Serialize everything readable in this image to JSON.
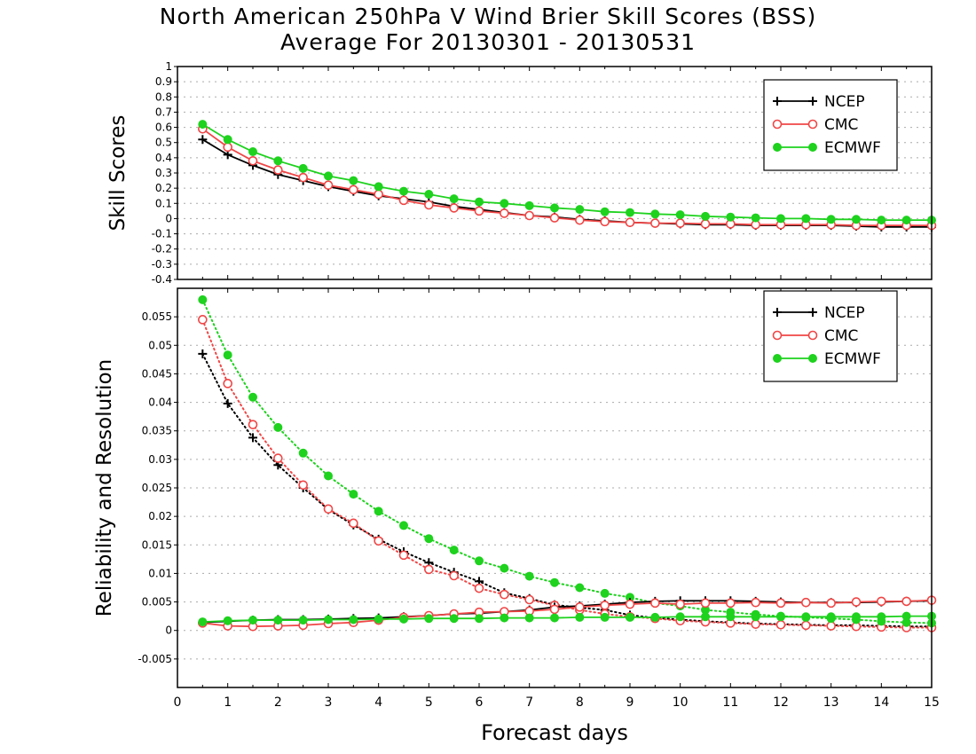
{
  "title": "North American 250hPa V Wind Brier Skill Scores (BSS)",
  "subtitle": "Average For 20130301 - 20130531",
  "colors": {
    "NCEP": "#000000",
    "CMC": "#f04646",
    "ECMWF": "#1ed21e",
    "grid": "#aaaaaa"
  },
  "chart_data": [
    {
      "type": "line",
      "title": "",
      "xlabel": "Forecast days",
      "ylabel": "Skill Scores",
      "xlim": [
        0,
        15
      ],
      "ylim": [
        -0.4,
        1
      ],
      "x_ticks": [
        0,
        1,
        2,
        3,
        4,
        5,
        6,
        7,
        8,
        9,
        10,
        11,
        12,
        13,
        14,
        15
      ],
      "y_ticks": [
        -0.4,
        -0.3,
        -0.2,
        -0.1,
        0,
        0.1,
        0.2,
        0.3,
        0.4,
        0.5,
        0.6,
        0.7,
        0.8,
        0.9,
        1
      ],
      "y_tick_labels": [
        "-0.4",
        "-0.3",
        "-0.2",
        "-0.1",
        "0",
        "0.1",
        "0.2",
        "0.3",
        "0.4",
        "0.5",
        "0.6",
        "0.7",
        "0.8",
        "0.9",
        "1"
      ],
      "grid": true,
      "legend": "top-right",
      "x": [
        0.5,
        1,
        1.5,
        2,
        2.5,
        3,
        3.5,
        4,
        4.5,
        5,
        5.5,
        6,
        6.5,
        7,
        7.5,
        8,
        8.5,
        9,
        9.5,
        10,
        10.5,
        11,
        11.5,
        12,
        12.5,
        13,
        13.5,
        14,
        14.5,
        15
      ],
      "series": [
        {
          "name": "NCEP",
          "marker": "plus",
          "line": "solid",
          "values": [
            0.52,
            0.42,
            0.35,
            0.29,
            0.25,
            0.21,
            0.18,
            0.15,
            0.13,
            0.11,
            0.08,
            0.06,
            0.04,
            0.02,
            0.01,
            -0.005,
            -0.015,
            -0.025,
            -0.03,
            -0.035,
            -0.04,
            -0.04,
            -0.045,
            -0.045,
            -0.045,
            -0.045,
            -0.05,
            -0.055,
            -0.055,
            -0.055
          ]
        },
        {
          "name": "CMC",
          "marker": "open-circle",
          "line": "solid",
          "values": [
            0.59,
            0.47,
            0.38,
            0.32,
            0.27,
            0.22,
            0.19,
            0.16,
            0.12,
            0.09,
            0.07,
            0.05,
            0.035,
            0.02,
            0.005,
            -0.01,
            -0.02,
            -0.025,
            -0.03,
            -0.03,
            -0.035,
            -0.035,
            -0.04,
            -0.04,
            -0.04,
            -0.04,
            -0.045,
            -0.045,
            -0.045,
            -0.045
          ]
        },
        {
          "name": "ECMWF",
          "marker": "filled-circle",
          "line": "solid",
          "values": [
            0.62,
            0.52,
            0.44,
            0.38,
            0.33,
            0.28,
            0.25,
            0.21,
            0.18,
            0.16,
            0.13,
            0.11,
            0.1,
            0.085,
            0.07,
            0.06,
            0.045,
            0.04,
            0.03,
            0.025,
            0.015,
            0.01,
            0.005,
            0.0,
            0.0,
            -0.005,
            -0.005,
            -0.01,
            -0.01,
            -0.01
          ]
        }
      ]
    },
    {
      "type": "line",
      "title": "",
      "xlabel": "Forecast days",
      "ylabel": "Reliability and Resolution",
      "xlim": [
        0,
        15
      ],
      "ylim": [
        -0.01,
        0.06
      ],
      "x_ticks": [
        0,
        1,
        2,
        3,
        4,
        5,
        6,
        7,
        8,
        9,
        10,
        11,
        12,
        13,
        14,
        15
      ],
      "y_ticks": [
        -0.005,
        0,
        0.005,
        0.01,
        0.015,
        0.02,
        0.025,
        0.03,
        0.035,
        0.04,
        0.045,
        0.05,
        0.055
      ],
      "y_tick_labels": [
        "-0.005",
        "0",
        "0.005",
        "0.01",
        "0.015",
        "0.02",
        "0.025",
        "0.03",
        "0.035",
        "0.04",
        "0.045",
        "0.05",
        "0.055"
      ],
      "grid": true,
      "legend": "top-right",
      "x": [
        0.5,
        1,
        1.5,
        2,
        2.5,
        3,
        3.5,
        4,
        4.5,
        5,
        5.5,
        6,
        6.5,
        7,
        7.5,
        8,
        8.5,
        9,
        9.5,
        10,
        10.5,
        11,
        11.5,
        12,
        12.5,
        13,
        13.5,
        14,
        14.5,
        15
      ],
      "series": [
        {
          "name": "NCEP",
          "marker": "plus",
          "line": "dotted",
          "quantity": "resolution",
          "values": [
            0.0485,
            0.0398,
            0.0338,
            0.029,
            0.025,
            0.0212,
            0.0185,
            0.016,
            0.0138,
            0.0119,
            0.0102,
            0.0086,
            0.0066,
            0.0056,
            0.0045,
            0.004,
            0.0036,
            0.0027,
            0.0022,
            0.0019,
            0.0016,
            0.0014,
            0.0012,
            0.0011,
            0.001,
            0.0009,
            0.0009,
            0.0008,
            0.0007,
            0.0007
          ]
        },
        {
          "name": "CMC",
          "marker": "open-circle",
          "line": "dotted",
          "quantity": "resolution",
          "values": [
            0.0545,
            0.0433,
            0.0361,
            0.0302,
            0.0255,
            0.0213,
            0.0188,
            0.0157,
            0.0132,
            0.0107,
            0.0096,
            0.0074,
            0.0063,
            0.0054,
            0.0044,
            0.0036,
            0.0029,
            0.0024,
            0.0021,
            0.0017,
            0.0015,
            0.0013,
            0.0011,
            0.001,
            0.0009,
            0.0008,
            0.0007,
            0.0006,
            0.0005,
            0.0005
          ]
        },
        {
          "name": "ECMWF",
          "marker": "filled-circle",
          "line": "dotted",
          "quantity": "resolution",
          "values": [
            0.058,
            0.0483,
            0.0409,
            0.0356,
            0.0311,
            0.0271,
            0.0239,
            0.0209,
            0.0184,
            0.0161,
            0.0141,
            0.0122,
            0.0109,
            0.0095,
            0.0084,
            0.0075,
            0.0065,
            0.0058,
            0.0048,
            0.0043,
            0.0036,
            0.0032,
            0.0028,
            0.0025,
            0.0023,
            0.0021,
            0.0019,
            0.0016,
            0.0014,
            0.0013
          ]
        },
        {
          "name": "NCEP",
          "marker": "plus",
          "line": "solid",
          "quantity": "reliability",
          "values": [
            0.0014,
            0.0016,
            0.0018,
            0.0019,
            0.0019,
            0.002,
            0.0021,
            0.0022,
            0.0024,
            0.0026,
            0.0029,
            0.003,
            0.0033,
            0.0036,
            0.0041,
            0.0043,
            0.0046,
            0.0049,
            0.0051,
            0.0052,
            0.0052,
            0.0052,
            0.0051,
            0.005,
            0.0049,
            0.0049,
            0.0049,
            0.005,
            0.0051,
            0.0052
          ]
        },
        {
          "name": "CMC",
          "marker": "open-circle",
          "line": "solid",
          "quantity": "reliability",
          "values": [
            0.0013,
            0.0008,
            0.0007,
            0.0008,
            0.0009,
            0.0012,
            0.0014,
            0.0018,
            0.0023,
            0.0026,
            0.0029,
            0.0032,
            0.0033,
            0.0034,
            0.0037,
            0.0041,
            0.0044,
            0.0046,
            0.0048,
            0.0046,
            0.0048,
            0.0048,
            0.0049,
            0.0048,
            0.0049,
            0.0048,
            0.005,
            0.0051,
            0.0051,
            0.0053
          ]
        },
        {
          "name": "ECMWF",
          "marker": "filled-circle",
          "line": "solid",
          "quantity": "reliability",
          "values": [
            0.0015,
            0.0017,
            0.0018,
            0.0018,
            0.0018,
            0.0019,
            0.0019,
            0.002,
            0.002,
            0.0021,
            0.0021,
            0.0021,
            0.0022,
            0.0022,
            0.0022,
            0.0023,
            0.0023,
            0.0023,
            0.0023,
            0.0024,
            0.0024,
            0.0024,
            0.0024,
            0.0024,
            0.0024,
            0.0024,
            0.0024,
            0.0024,
            0.0025,
            0.0025
          ]
        }
      ]
    }
  ]
}
